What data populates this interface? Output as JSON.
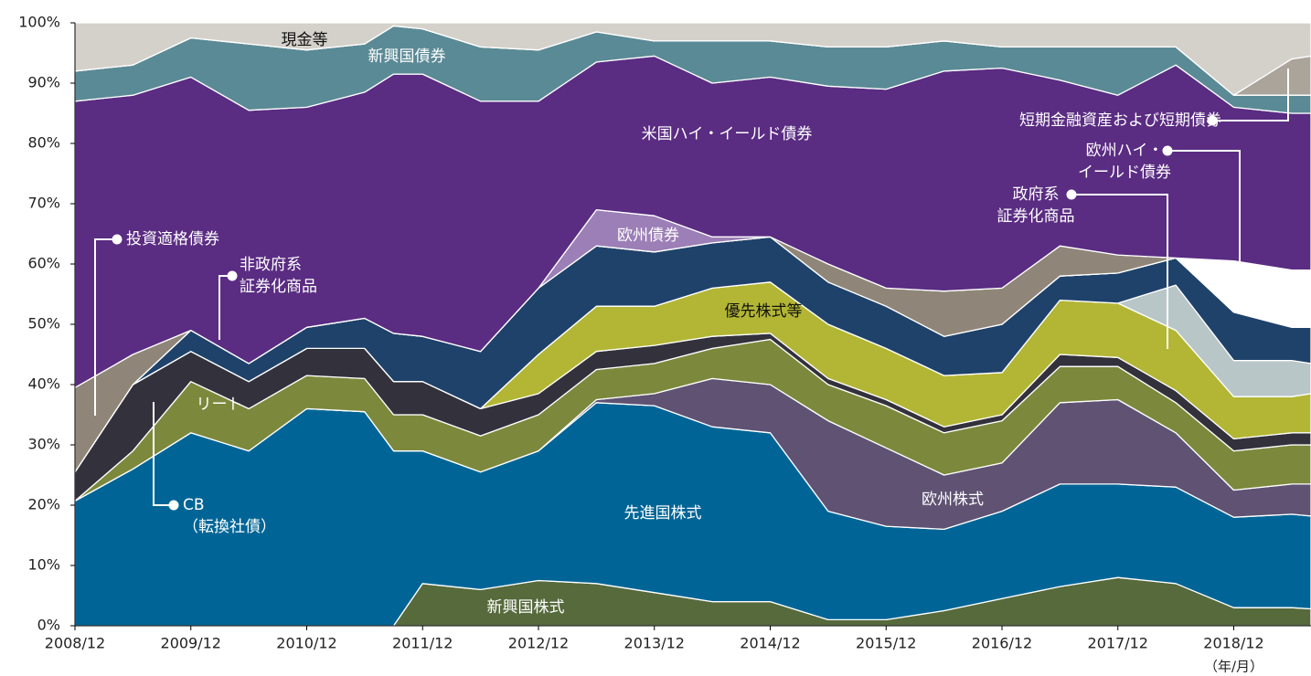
{
  "chart_data": {
    "type": "stacked_area",
    "xlabel": "（年/月）",
    "x": [
      "2008/12",
      "2009/06",
      "2009/12",
      "2010/06",
      "2010/12",
      "2011/06",
      "2011/09",
      "2011/12",
      "2012/06",
      "2012/12",
      "2013/06",
      "2013/12",
      "2014/06",
      "2014/12",
      "2015/06",
      "2015/12",
      "2016/06",
      "2016/12",
      "2017/06",
      "2017/12",
      "2018/06",
      "2018/12",
      "2019/06",
      "2019/08"
    ],
    "xlim": [
      "2008/12",
      "2019/08"
    ],
    "xticks": [
      "2008/12",
      "2009/12",
      "2010/12",
      "2011/12",
      "2012/12",
      "2013/12",
      "2014/12",
      "2015/12",
      "2016/12",
      "2017/12",
      "2018/12"
    ],
    "ylim": [
      0,
      100
    ],
    "yticks": [
      {
        "value": 0,
        "label": "0%"
      },
      {
        "value": 10,
        "label": "10%"
      },
      {
        "value": 20,
        "label": "20%"
      },
      {
        "value": 30,
        "label": "30%"
      },
      {
        "value": 40,
        "label": "40%"
      },
      {
        "value": 50,
        "label": "50%"
      },
      {
        "value": 60,
        "label": "60%"
      },
      {
        "value": 70,
        "label": "70%"
      },
      {
        "value": 80,
        "label": "80%"
      },
      {
        "value": 90,
        "label": "90%"
      },
      {
        "value": 100,
        "label": "100%"
      }
    ],
    "series": [
      {
        "name": "新興国株式",
        "color": "#566a3c",
        "values": [
          0,
          0,
          0,
          0,
          0,
          0,
          0,
          7,
          6,
          7.5,
          7,
          5.5,
          4,
          4,
          1,
          1,
          2.5,
          4.5,
          6.5,
          8,
          7,
          3,
          3,
          2.8
        ]
      },
      {
        "name": "先進国株式",
        "color": "#006596",
        "values": [
          20.7,
          26,
          32,
          29,
          36,
          35.5,
          29,
          22,
          19.5,
          21.5,
          30,
          31,
          29,
          28,
          18,
          15.5,
          13.5,
          14.5,
          17,
          15.5,
          16,
          15,
          15.5,
          15.4
        ]
      },
      {
        "name": "欧州株式",
        "color": "#5f5273",
        "values": [
          0,
          0,
          0,
          0,
          0,
          0,
          0,
          0,
          0,
          0,
          0.5,
          2,
          8,
          8,
          15,
          13,
          9,
          8,
          13.5,
          14,
          9,
          4.5,
          5,
          5.3
        ]
      },
      {
        "name": "リート",
        "color": "#7c893d",
        "values": [
          0,
          3,
          8.5,
          7,
          5.5,
          5.5,
          6,
          6,
          6,
          6,
          5,
          5,
          5,
          7.5,
          6,
          7,
          7,
          7,
          6,
          5.5,
          5,
          6.5,
          6.5,
          6.5
        ]
      },
      {
        "name": "CB\n（転換社債）",
        "color": "#33323c",
        "values": [
          4.8,
          11,
          5,
          4.5,
          4.5,
          5,
          5.5,
          5.5,
          4.5,
          3.5,
          3,
          3,
          2,
          1,
          1,
          1,
          1,
          1,
          2,
          1.5,
          2,
          2,
          2,
          2
        ]
      },
      {
        "name": "優先株式等",
        "color": "#b3b634",
        "values": [
          0,
          0,
          0,
          0,
          0,
          0,
          0,
          0,
          0,
          6.5,
          7.5,
          6.5,
          8,
          8.5,
          9,
          8.5,
          8.5,
          7,
          9,
          9,
          10,
          7,
          6,
          6.5
        ]
      },
      {
        "name": "政府系\n証券化商品",
        "color": "#b8c6c8",
        "values": [
          0,
          0,
          0,
          0,
          0,
          0,
          0,
          0,
          0,
          0,
          0,
          0,
          0,
          0,
          0,
          0,
          0,
          0,
          0,
          0,
          7.5,
          6,
          6,
          5
        ]
      },
      {
        "name": "非政府系\n証券化商品",
        "color": "#1f426a",
        "values": [
          0,
          0,
          3.5,
          3,
          3.5,
          5,
          8,
          7.5,
          9.5,
          11,
          10,
          9,
          7.5,
          7.5,
          7,
          7,
          6.5,
          8,
          4,
          5,
          4.5,
          8,
          5.5,
          6
        ]
      },
      {
        "name": "欧州ハイ・\nイールド債券",
        "color": "#ffffff",
        "values": [
          0,
          0,
          0,
          0,
          0,
          0,
          0,
          0,
          0,
          0,
          0,
          0,
          0,
          0,
          0,
          0,
          0,
          0,
          0,
          0,
          0,
          8.5,
          9.5,
          9.5
        ]
      },
      {
        "name": "欧州債券",
        "color": "#9c7fb6",
        "values": [
          0,
          0,
          0,
          0,
          0,
          0,
          0,
          0,
          0,
          0,
          6,
          6,
          1,
          0,
          0,
          0,
          0,
          0,
          0,
          0,
          0,
          0,
          0,
          0
        ]
      },
      {
        "name": "投資適格債券",
        "color": "#8f8679",
        "values": [
          14,
          5,
          0,
          0,
          0,
          0,
          0,
          0,
          0,
          0,
          0,
          0,
          0,
          0,
          3,
          3,
          7.5,
          6,
          5,
          3,
          0,
          0,
          0,
          0
        ]
      },
      {
        "name": "米国ハイ・イールド債券",
        "color": "#5a2c82",
        "values": [
          47.5,
          43,
          42,
          42,
          36.5,
          37.5,
          43,
          43.5,
          41.5,
          31,
          24.5,
          26.5,
          25.5,
          26.5,
          29.5,
          33,
          36.5,
          36.5,
          27.5,
          26.5,
          32,
          25.5,
          26,
          26
        ]
      },
      {
        "name": "新興国債券",
        "color": "#5a8a95",
        "values": [
          5,
          5,
          6.5,
          11,
          9.5,
          8,
          8,
          7.5,
          9,
          8.5,
          5,
          2.5,
          7,
          6,
          6.5,
          7,
          5,
          3.5,
          5.5,
          8,
          3,
          2,
          3,
          3
        ]
      },
      {
        "name": "短期金融資産および短期債券",
        "color": "#aba49b",
        "values": [
          0,
          0,
          0,
          0,
          0,
          0,
          0,
          0,
          0,
          0,
          0,
          0,
          0,
          0,
          0,
          0,
          0,
          0,
          0,
          0,
          0,
          0,
          6,
          6.5
        ]
      },
      {
        "name": "現金等",
        "color": "#d4d1cb",
        "values": [
          8,
          7,
          2.5,
          3.5,
          4.5,
          3.5,
          0.5,
          1,
          4,
          4.5,
          1.5,
          3,
          3,
          3,
          4,
          4,
          3,
          4,
          4,
          4,
          4,
          12,
          6,
          5.5
        ]
      }
    ]
  }
}
